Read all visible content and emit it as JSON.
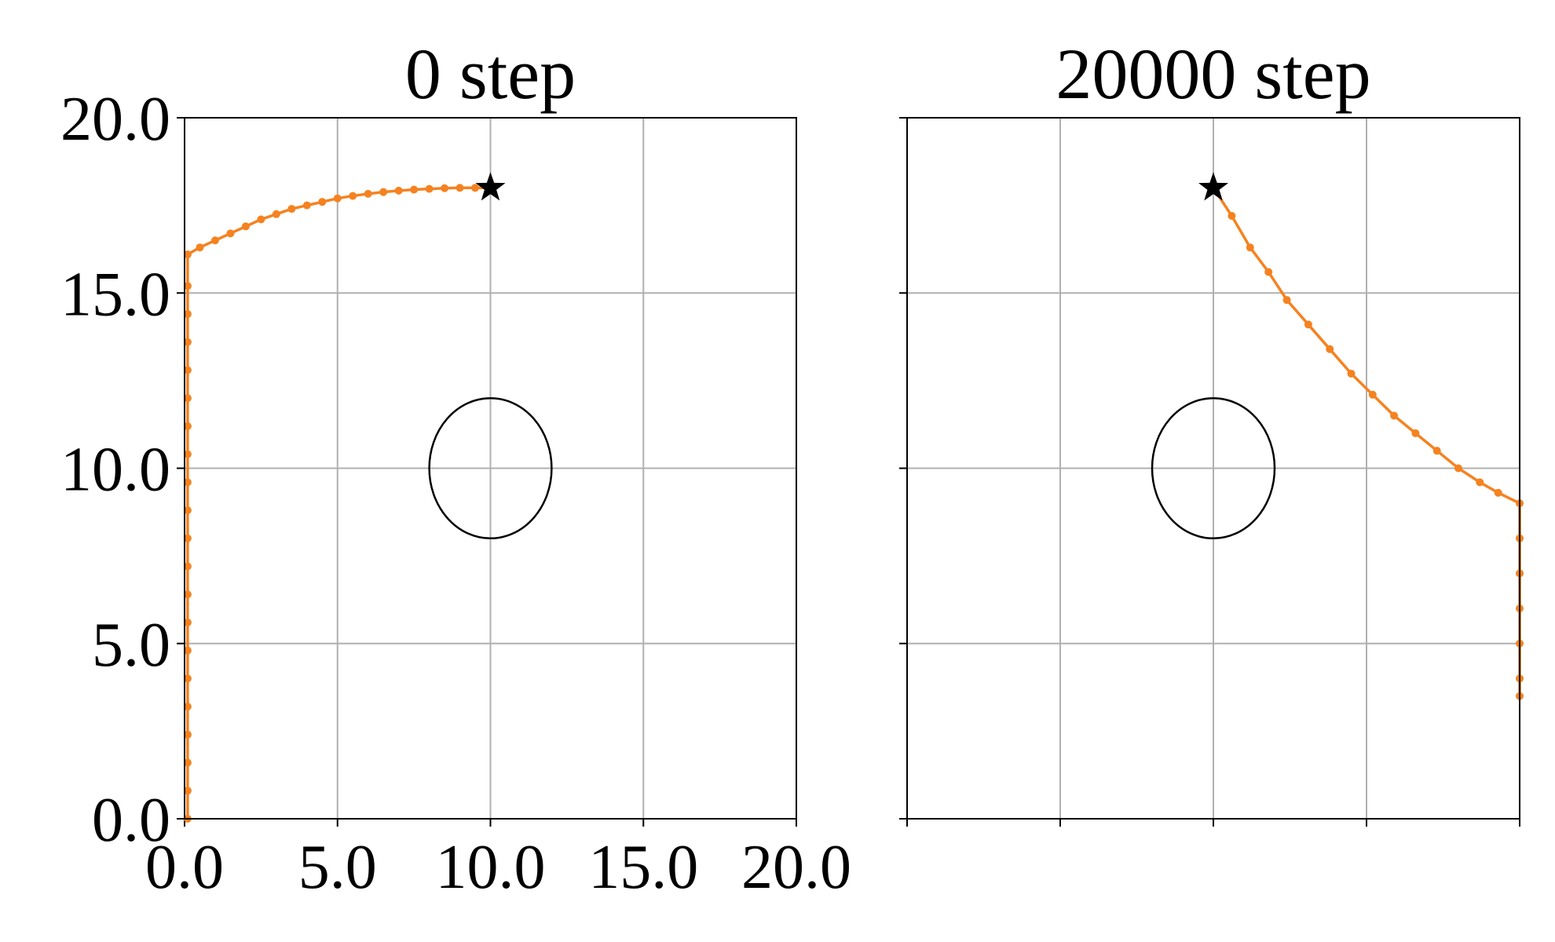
{
  "chart_data": [
    {
      "type": "line",
      "title": "0 step",
      "series": [
        {
          "color": "#f58220",
          "x": [
            0.1,
            0.1,
            0.1,
            0.1,
            0.1,
            0.1,
            0.1,
            0.1,
            0.1,
            0.1,
            0.1,
            0.1,
            0.1,
            0.1,
            0.1,
            0.1,
            0.1,
            0.1,
            0.1,
            0.1,
            0.1,
            0.5,
            1,
            1.5,
            2,
            2.5,
            3,
            3.5,
            4,
            4.5,
            5,
            5.5,
            6,
            6.5,
            7,
            7.5,
            8,
            8.5,
            9,
            9.5,
            10
          ],
          "values": [
            0,
            0.8,
            1.6,
            2.4,
            3.2,
            4,
            4.8,
            5.6,
            6.4,
            7.2,
            8,
            8.8,
            9.6,
            10.4,
            11.2,
            12,
            12.8,
            13.6,
            14.4,
            15.2,
            16.1,
            16.3,
            16.5,
            16.7,
            16.9,
            17.1,
            17.25,
            17.4,
            17.5,
            17.6,
            17.7,
            17.77,
            17.83,
            17.88,
            17.92,
            17.95,
            17.97,
            17.99,
            18,
            18,
            18
          ]
        }
      ],
      "goal": [
        10,
        18
      ],
      "obstacle": {
        "center": [
          10,
          10
        ],
        "radius": 2
      },
      "xlim": [
        0,
        20
      ],
      "ylim": [
        0,
        20
      ],
      "xticks": [
        {
          "value": 0,
          "label": "0.0"
        },
        {
          "value": 5,
          "label": "5.0"
        },
        {
          "value": 10,
          "label": "10.0"
        },
        {
          "value": 15,
          "label": "15.0"
        },
        {
          "value": 20,
          "label": "20.0"
        }
      ],
      "yticks": [
        {
          "value": 0,
          "label": "0.0"
        },
        {
          "value": 5,
          "label": "5.0"
        },
        {
          "value": 10,
          "label": "10.0"
        },
        {
          "value": 15,
          "label": "15.0"
        },
        {
          "value": 20,
          "label": "20.0"
        }
      ],
      "grid": true,
      "show_xtick_labels": true,
      "show_ytick_labels": true
    },
    {
      "type": "line",
      "title": "20000 step",
      "series": [
        {
          "color": "#f58220",
          "x": [
            10,
            10.6,
            11.2,
            11.8,
            12.4,
            13.1,
            13.8,
            14.5,
            15.2,
            15.9,
            16.6,
            17.3,
            18,
            18.7,
            19.3,
            20,
            20,
            20,
            20,
            20,
            20,
            20
          ],
          "values": [
            18,
            17.2,
            16.3,
            15.6,
            14.8,
            14.1,
            13.4,
            12.7,
            12.1,
            11.5,
            11,
            10.5,
            10,
            9.6,
            9.3,
            9,
            8,
            7,
            6,
            5,
            4,
            3.5
          ]
        }
      ],
      "goal": [
        10,
        18
      ],
      "obstacle": {
        "center": [
          10,
          10
        ],
        "radius": 2
      },
      "xlim": [
        0,
        20
      ],
      "ylim": [
        0,
        20
      ],
      "xticks": [
        0,
        5,
        10,
        15,
        20
      ],
      "yticks": [
        0,
        5,
        10,
        15,
        20
      ],
      "grid": true,
      "show_xtick_labels": false,
      "show_ytick_labels": false
    }
  ]
}
